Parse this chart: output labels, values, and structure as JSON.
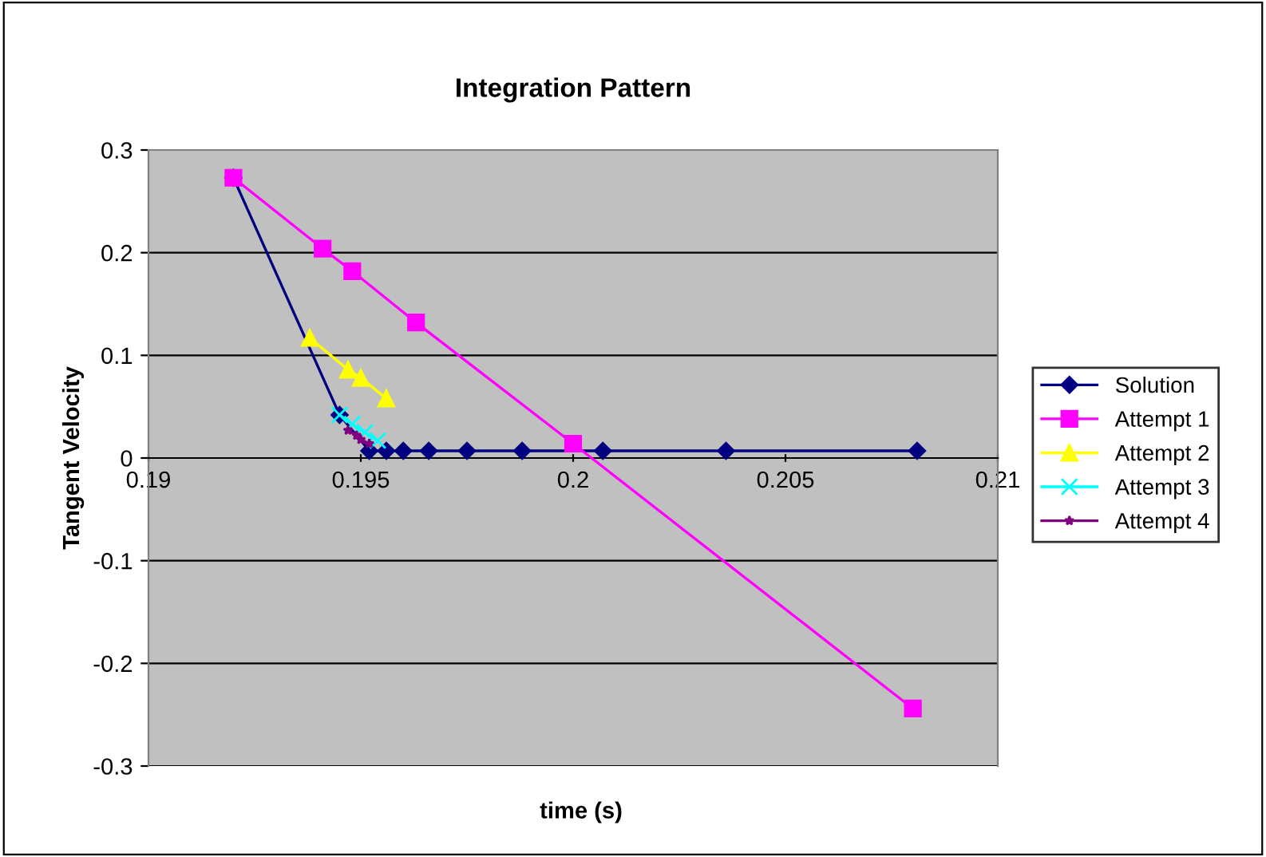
{
  "chart_data": {
    "type": "line",
    "title": "Integration Pattern",
    "xlabel": "time (s)",
    "ylabel": "Tangent Velocity",
    "xlim": [
      0.19,
      0.21
    ],
    "xticks": [
      0.19,
      0.195,
      0.2,
      0.205,
      0.21
    ],
    "ylim": [
      -0.3,
      0.3
    ],
    "yticks": [
      -0.3,
      -0.2,
      -0.1,
      0,
      0.1,
      0.2,
      0.3
    ],
    "grid": "y",
    "legend": "right",
    "series": [
      {
        "name": "Solution",
        "color": "#000080",
        "marker": "diamond",
        "x": [
          0.192,
          0.1945,
          0.1952,
          0.1956,
          0.196,
          0.1966,
          0.1975,
          0.1988,
          0.2007,
          0.2036,
          0.2081
        ],
        "values": [
          0.273,
          0.042,
          0.007,
          0.007,
          0.007,
          0.007,
          0.007,
          0.007,
          0.007,
          0.007,
          0.007
        ]
      },
      {
        "name": "Attempt 1",
        "color": "#ff00ff",
        "marker": "square",
        "x": [
          0.192,
          0.1941,
          0.1948,
          0.1963,
          0.2,
          0.208
        ],
        "values": [
          0.273,
          0.204,
          0.182,
          0.132,
          0.014,
          -0.244
        ]
      },
      {
        "name": "Attempt 2",
        "color": "#ffff00",
        "marker": "triangle",
        "x": [
          0.1938,
          0.1947,
          0.195,
          0.1956
        ],
        "values": [
          0.117,
          0.086,
          0.078,
          0.058
        ]
      },
      {
        "name": "Attempt 3",
        "color": "#00ffff",
        "marker": "cross",
        "x": [
          0.1945,
          0.1948,
          0.1951,
          0.1954
        ],
        "values": [
          0.042,
          0.033,
          0.025,
          0.017
        ]
      },
      {
        "name": "Attempt 4",
        "color": "#800080",
        "marker": "star",
        "x": [
          0.1947,
          0.1949,
          0.195,
          0.1952
        ],
        "values": [
          0.027,
          0.022,
          0.018,
          0.014
        ]
      }
    ]
  }
}
